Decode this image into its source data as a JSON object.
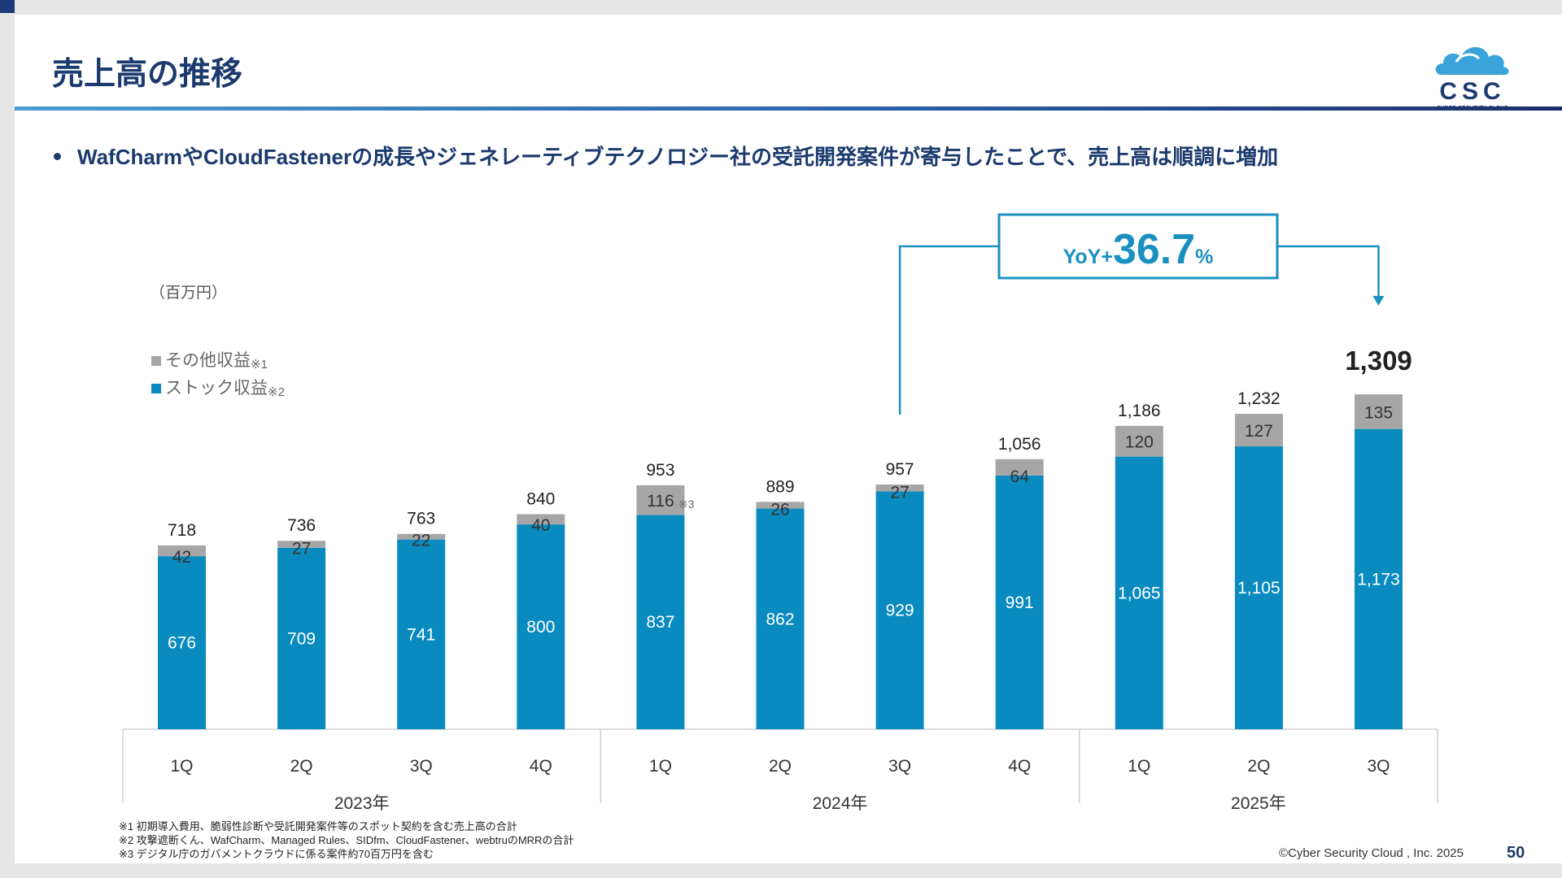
{
  "slide": {
    "title": "売上高の推移",
    "bullet": "WafCharmやCloudFastenerの成長やジェネレーティブテクノロジー社の受託開発案件が寄与したことで、売上高は順調に増加",
    "unit": "（百万円）",
    "legend": [
      {
        "label": "その他収益",
        "note": "※1",
        "color": "#a6a6a6"
      },
      {
        "label": "ストック収益",
        "note": "※2",
        "color": "#0a8bbf"
      }
    ],
    "logo": {
      "text": "CSC",
      "subtext": "CYBER SECURITY CLOUD",
      "icon": "cloud-logo-icon"
    },
    "yoy": {
      "prefix": "YoY+",
      "value": "36.7",
      "suffix": "%"
    },
    "footnotes": [
      "※1 初期導入費用、脆弱性診断や受託開発案件等のスポット契約を含む売上高の合計",
      "※2 攻撃遮断くん、WafCharm、Managed Rules、SIDfm、CloudFastener、webtruのMRRの合計",
      "※3 デジタル庁のガバメントクラウドに係る案件約70百万円を含む"
    ],
    "copyright": "©Cyber Security Cloud , Inc. 2025",
    "page_number": "50"
  },
  "chart_data": {
    "type": "bar",
    "stacked": true,
    "categories": [
      "1Q",
      "2Q",
      "3Q",
      "4Q",
      "1Q",
      "2Q",
      "3Q",
      "4Q",
      "1Q",
      "2Q",
      "3Q"
    ],
    "groups": [
      {
        "label": "2023年",
        "count": 4
      },
      {
        "label": "2024年",
        "count": 4
      },
      {
        "label": "2025年",
        "count": 3
      }
    ],
    "series": [
      {
        "name": "ストック収益",
        "color": "#0a8bbf",
        "values": [
          676,
          709,
          741,
          800,
          837,
          862,
          929,
          991,
          1065,
          1105,
          1173
        ],
        "labels": [
          "676",
          "709",
          "741",
          "800",
          "837",
          "862",
          "929",
          "991",
          "1,065",
          "1,105",
          "1,173"
        ]
      },
      {
        "name": "その他収益",
        "color": "#a6a6a6",
        "values": [
          42,
          27,
          22,
          40,
          116,
          26,
          27,
          64,
          120,
          127,
          135
        ],
        "labels": [
          "42",
          "27",
          "22",
          "40",
          "116",
          "26",
          "27",
          "64",
          "120",
          "127",
          "135"
        ]
      }
    ],
    "totals": [
      "718",
      "736",
      "763",
      "840",
      "953",
      "889",
      "957",
      "1,056",
      "1,186",
      "1,232",
      "1,309"
    ],
    "annotations": [
      {
        "bar_index": 4,
        "series": "その他収益",
        "text": "※3"
      },
      {
        "type": "yoy-arrow",
        "from_bar_index": 6,
        "to_bar_index": 10,
        "text": "YoY+36.7%"
      }
    ],
    "ylim": [
      0,
      1500
    ],
    "grid": false,
    "legend_position": "top-left"
  }
}
